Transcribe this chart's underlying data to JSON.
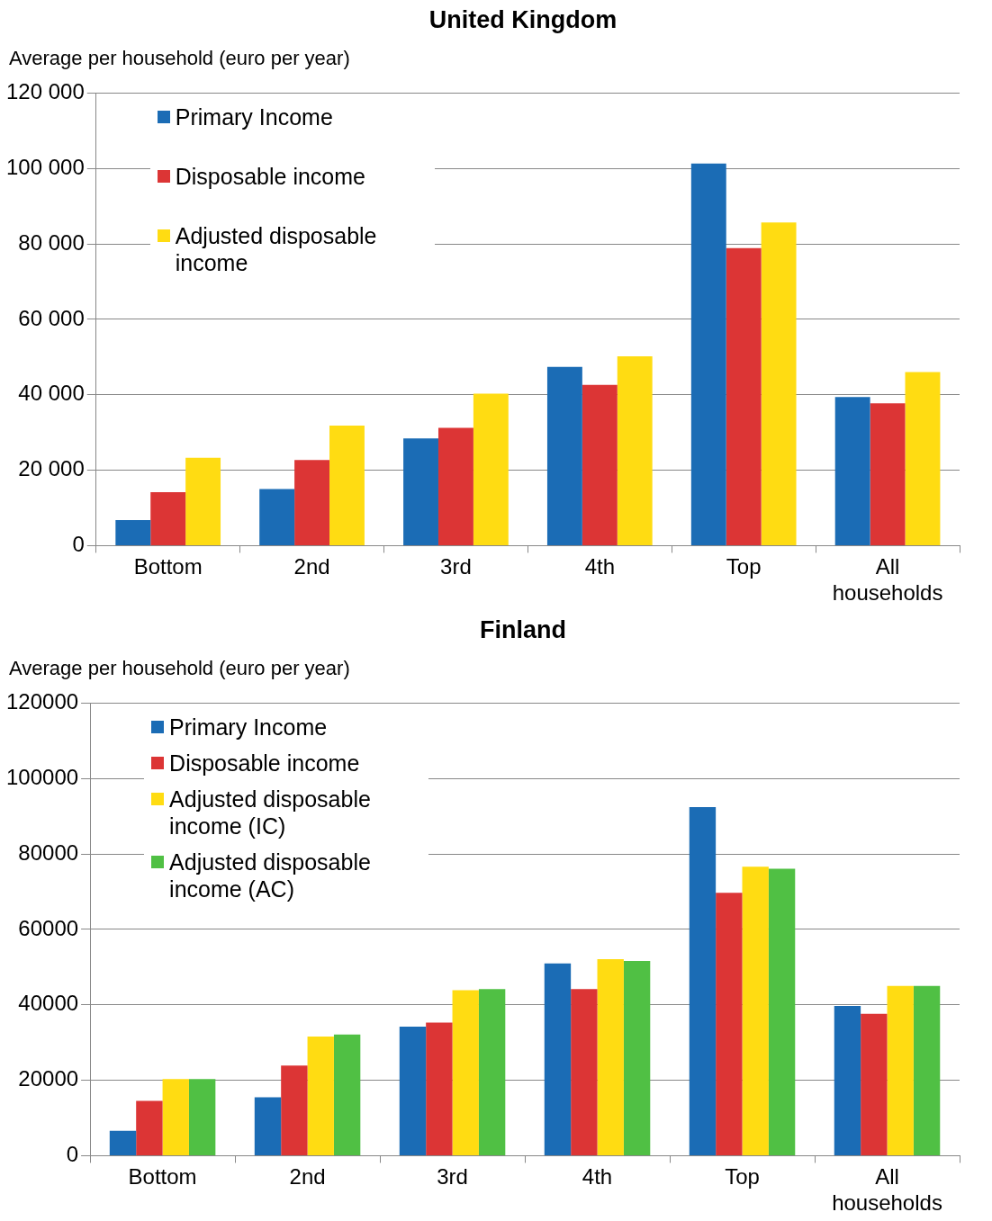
{
  "chart_data": [
    {
      "type": "bar",
      "title": "United Kingdom",
      "ylabel": "Average  per household (euro per year)",
      "categories": [
        "Bottom",
        "2nd",
        "3rd",
        "4th",
        "Top",
        "All households"
      ],
      "series": [
        {
          "name": "Primary Income",
          "color": "#1b6cb5",
          "values": [
            6800,
            15000,
            28400,
            47400,
            101300,
            39400
          ]
        },
        {
          "name": "Disposable income",
          "color": "#dc3535",
          "values": [
            14200,
            22700,
            31200,
            42600,
            78900,
            37700
          ]
        },
        {
          "name": "Adjusted disposable income",
          "color": "#ffdc12",
          "values": [
            23300,
            31800,
            40300,
            50200,
            85700,
            46000
          ]
        }
      ],
      "ylim": [
        0,
        120000
      ],
      "yticks": [
        0,
        {
          "value": 20000,
          "label": "20 000"
        },
        {
          "value": 40000,
          "label": "40 000"
        },
        {
          "value": 60000,
          "label": "60 000"
        },
        {
          "value": 80000,
          "label": "80 000"
        },
        {
          "value": 100000,
          "label": "100 000"
        },
        {
          "value": 120000,
          "label": "120 000"
        }
      ],
      "grid": "y",
      "legend": "top left"
    },
    {
      "type": "bar",
      "title": "Finland",
      "ylabel": "Average  per household (euro per year)",
      "categories": [
        "Bottom",
        "2nd",
        "3rd",
        "4th",
        "Top",
        "All households"
      ],
      "series": [
        {
          "name": "Primary Income",
          "color": "#1b6cb5",
          "values": [
            6600,
            15500,
            34200,
            51000,
            92400,
            39700
          ]
        },
        {
          "name": "Disposable income",
          "color": "#dc3535",
          "values": [
            14500,
            23900,
            35300,
            44200,
            69700,
            37600
          ]
        },
        {
          "name": "Adjusted disposable income (IC)",
          "color": "#ffdc12",
          "values": [
            20300,
            31600,
            43900,
            52100,
            76600,
            45000
          ]
        },
        {
          "name": "Adjusted disposable income (AC)",
          "color": "#50c044",
          "values": [
            20300,
            32100,
            44200,
            51600,
            76100,
            45000
          ]
        }
      ],
      "ylim": [
        0,
        120000
      ],
      "yticks": [
        0,
        20000,
        40000,
        60000,
        80000,
        100000,
        120000
      ],
      "grid": "y",
      "legend": "top left"
    }
  ]
}
